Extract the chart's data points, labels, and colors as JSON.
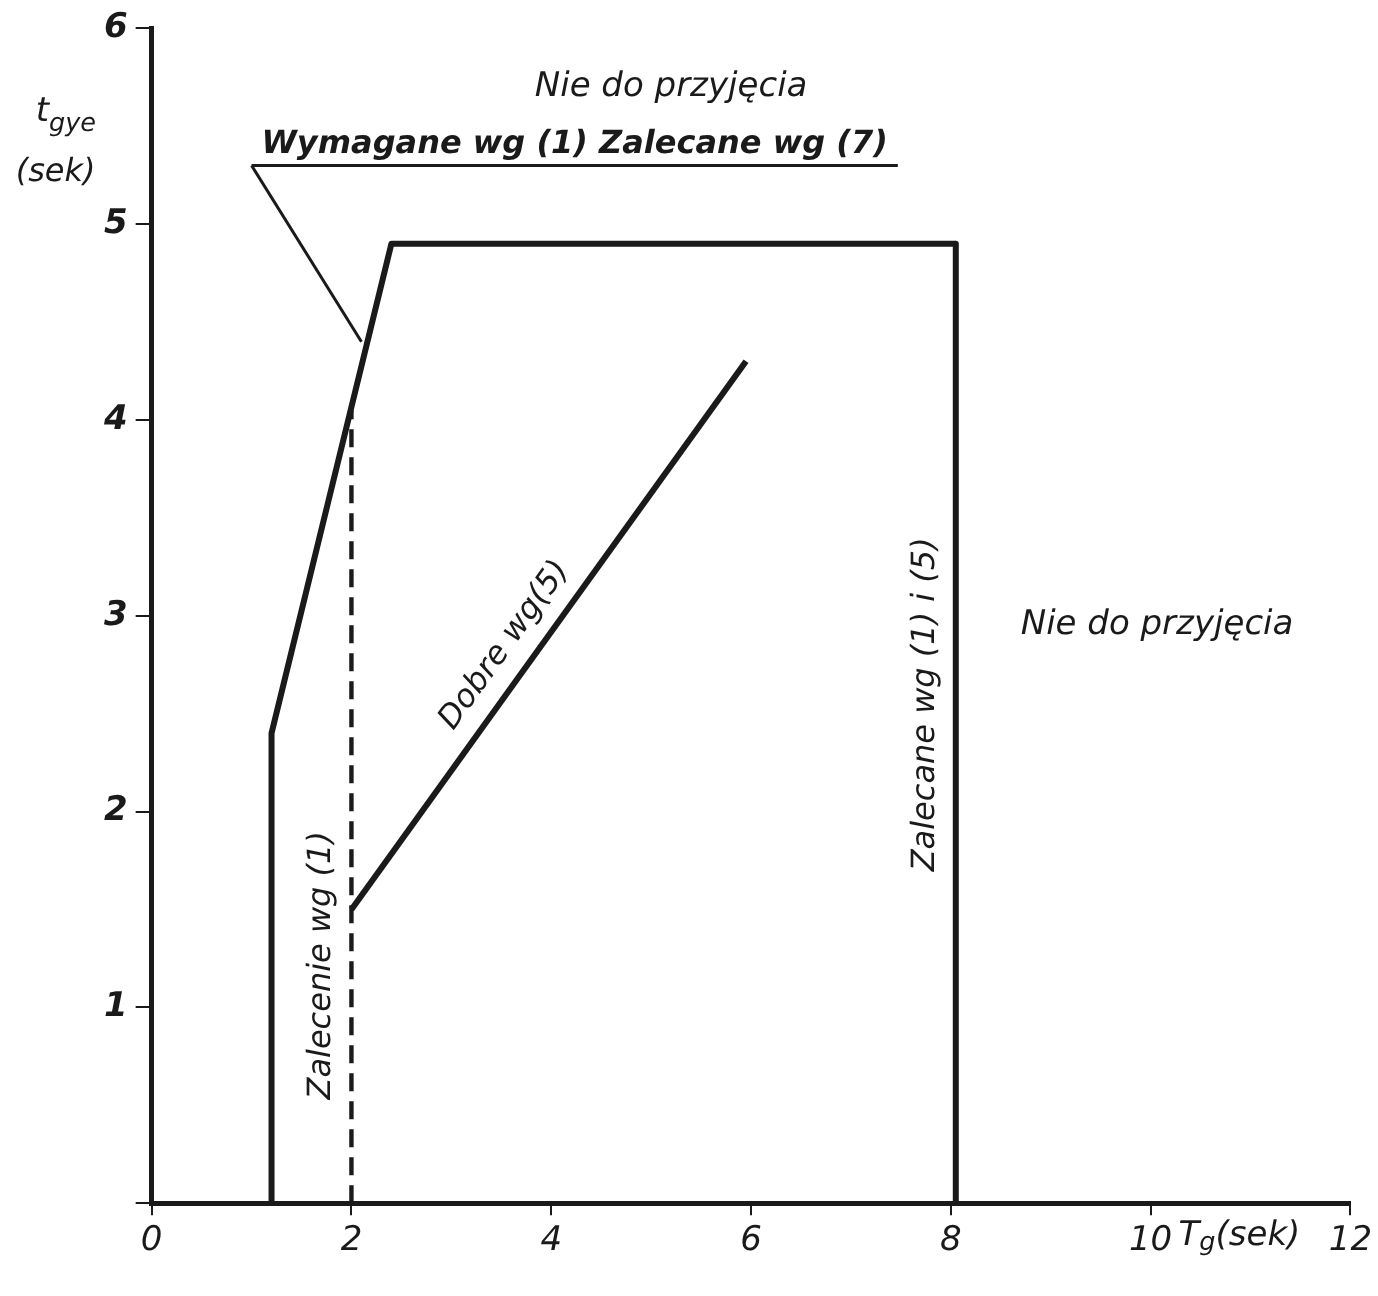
{
  "chart_data": {
    "type": "line",
    "xlabel": "T$_{g}$(sek)",
    "ylabel": "t$_{gye}$ (sek)",
    "xlim": [
      0,
      12
    ],
    "ylim": [
      0,
      6
    ],
    "xticks": [
      0,
      2,
      4,
      6,
      8,
      10,
      12
    ],
    "yticks": [
      {
        "value": 0,
        "label": null
      },
      1,
      2,
      3,
      4,
      5,
      6
    ],
    "grid": false,
    "legend": false,
    "marker": "none",
    "series": [
      {
        "name": "Wymagane wg (1) Zalecane wg (7)",
        "color": "#1a1a1a",
        "x": [
          1.2,
          1.2,
          2.4,
          8.05
        ],
        "values": [
          0,
          2.4,
          4.9,
          4.9
        ]
      },
      {
        "name": "Zalecane wg (1) i (5)",
        "color": "#1a1a1a",
        "x": [
          8.05,
          8.05
        ],
        "values": [
          4.9,
          0
        ]
      },
      {
        "name": "Zalecenie wg (1)",
        "color": "#1a1a1a",
        "line_style": "dashed",
        "x": [
          2,
          2
        ],
        "values": [
          0,
          4.05
        ]
      },
      {
        "name": "Dobre wg(5)",
        "color": "#1a1a1a",
        "x": [
          2,
          5.95
        ],
        "values": [
          1.5,
          4.3
        ]
      }
    ],
    "annotations": [
      "Nie do przyjęcia",
      "Nie do przyjęcia"
    ]
  }
}
